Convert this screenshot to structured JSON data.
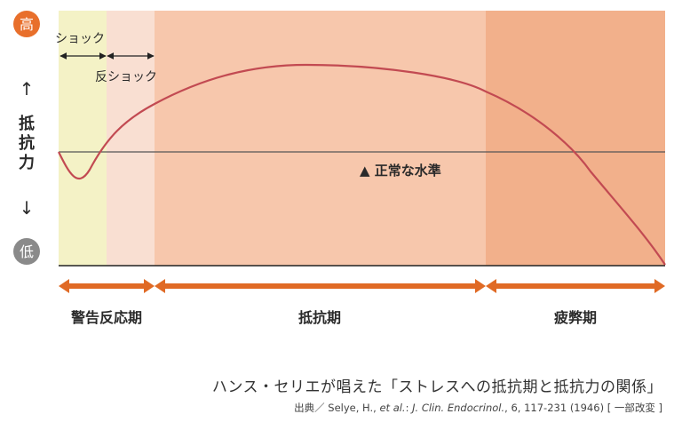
{
  "axis": {
    "high_label": "高",
    "low_label": "低",
    "y_label_chars": [
      "抵",
      "抗",
      "力"
    ],
    "up_arrow": "↑",
    "down_arrow": "↓"
  },
  "phases": {
    "shock": "ショック",
    "counter_shock": "反ショック",
    "alarm": "警告反応期",
    "resistance": "抵抗期",
    "exhaustion": "疲弊期"
  },
  "baseline_label": "▲ 正常な水準",
  "caption": {
    "title": "ハンス・セリエが唱えた「ストレスへの抵抗期と抵抗力の関係」",
    "source_prefix": "出典／ Selye, H., ",
    "source_etal": "et al.",
    "source_colon": ": ",
    "source_journal": "J. Clin. Endocrinol.",
    "source_rest": ", 6, 117-231 (1946) [ 一部改変 ]"
  },
  "colors": {
    "shock_band": "#f4f2c6",
    "counter_shock_band": "#f9dfd2",
    "resistance_band": "#f7c7ac",
    "exhaustion_band": "#f2b08b",
    "curve": "#c24a52",
    "arrow_orange": "#e06a25",
    "badge": "#e86f2b",
    "badge_low": "#8a8a8a"
  }
}
